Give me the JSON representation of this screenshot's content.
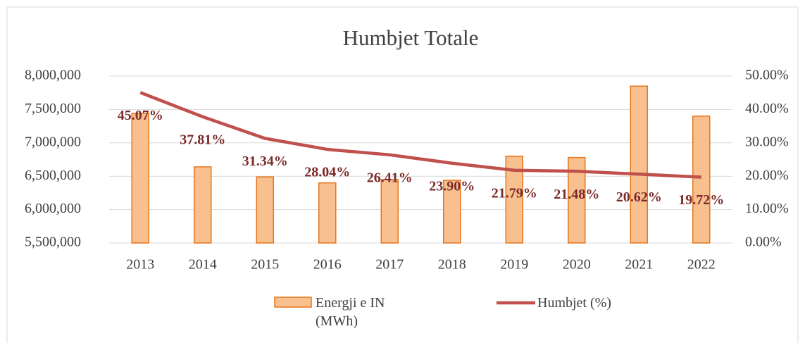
{
  "chart_data": {
    "type": "bar_line",
    "title": "Humbjet Totale",
    "categories": [
      "2013",
      "2014",
      "2015",
      "2016",
      "2017",
      "2018",
      "2019",
      "2020",
      "2021",
      "2022"
    ],
    "series": [
      {
        "name": "Energji e IN (MWh)",
        "type": "bar",
        "color": "#f8c08f",
        "edge_color": "#e8761b",
        "axis": "y",
        "values": [
          7440000,
          6640000,
          6490000,
          6400000,
          6450000,
          6440000,
          6800000,
          6780000,
          7850000,
          7400000
        ]
      },
      {
        "name": "Humbjet (%)",
        "type": "line",
        "color": "#c0504d",
        "axis": "y2",
        "values": [
          45.07,
          37.81,
          31.34,
          28.04,
          26.41,
          23.9,
          21.79,
          21.48,
          20.62,
          19.72
        ],
        "value_labels": [
          "45.07%",
          "37.81%",
          "31.34%",
          "28.04%",
          "26.41%",
          "23.90%",
          "21.79%",
          "21.48%",
          "20.62%",
          "19.72%"
        ],
        "label_color": "#7b2a2a"
      }
    ],
    "ylim": [
      5500000,
      8000000
    ],
    "yticks": [
      {
        "value": 5500000,
        "label": "5,500,000"
      },
      {
        "value": 6000000,
        "label": "6,000,000"
      },
      {
        "value": 6500000,
        "label": "6,500,000"
      },
      {
        "value": 7000000,
        "label": "7,000,000"
      },
      {
        "value": 7500000,
        "label": "7,500,000"
      },
      {
        "value": 8000000,
        "label": "8,000,000"
      }
    ],
    "y2lim": [
      0,
      50
    ],
    "y2ticks": [
      {
        "value": 0,
        "label": "0.00%"
      },
      {
        "value": 10,
        "label": "10.00%"
      },
      {
        "value": 20,
        "label": "20.00%"
      },
      {
        "value": 30,
        "label": "30.00%"
      },
      {
        "value": 40,
        "label": "40.00%"
      },
      {
        "value": 50,
        "label": "50.00%"
      }
    ],
    "grid": true,
    "legend": "bottom"
  }
}
